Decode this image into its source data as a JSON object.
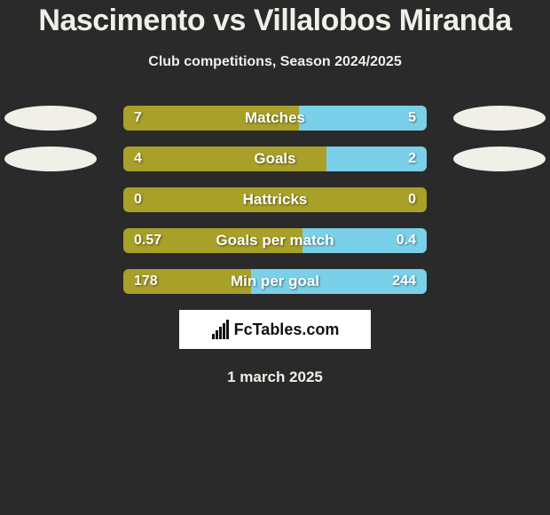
{
  "title": "Nascimento vs Villalobos Miranda",
  "subtitle": "Club competitions, Season 2024/2025",
  "date": "1 march 2025",
  "logo_text": "FcTables.com",
  "colors": {
    "left": "#a8a028",
    "right": "#7ad0e8",
    "background": "#2a2a2a",
    "text": "#f0f0e8"
  },
  "oval_left": "#f0f0e8",
  "oval_right": "#f0f0e8",
  "rows": [
    {
      "label": "Matches",
      "left_val": "7",
      "right_val": "5",
      "left_pct": 58,
      "show_ovals": true
    },
    {
      "label": "Goals",
      "left_val": "4",
      "right_val": "2",
      "left_pct": 67,
      "show_ovals": true
    },
    {
      "label": "Hattricks",
      "left_val": "0",
      "right_val": "0",
      "left_pct": 100,
      "show_ovals": false
    },
    {
      "label": "Goals per match",
      "left_val": "0.57",
      "right_val": "0.4",
      "left_pct": 59,
      "show_ovals": false
    },
    {
      "label": "Min per goal",
      "left_val": "178",
      "right_val": "244",
      "left_pct": 42,
      "show_ovals": false
    }
  ]
}
